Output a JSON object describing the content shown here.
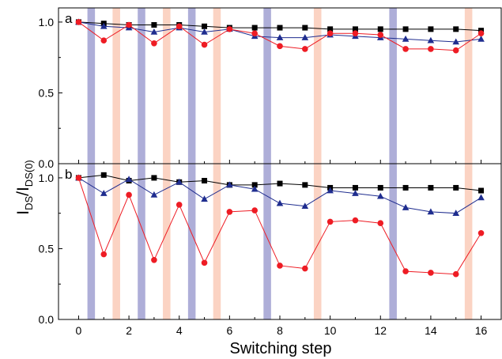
{
  "figure": {
    "ylabel_main": "I",
    "ylabel_sub1": "DS",
    "ylabel_slash": "/I",
    "ylabel_sub2": "DS(0)",
    "xlabel": "Switching step"
  },
  "colors": {
    "band_blue": "#aeaed8",
    "band_pink": "#fbd3c3",
    "series_black": "#000000",
    "series_blue": "#1f2d8f",
    "series_red": "#ee1c24"
  },
  "chart_data": [
    {
      "type": "line",
      "panel_label": "a",
      "x": [
        0,
        1,
        2,
        3,
        4,
        5,
        6,
        7,
        8,
        9,
        10,
        11,
        12,
        13,
        14,
        15,
        16
      ],
      "xlim": [
        -0.8,
        16.8
      ],
      "ylim": [
        0.0,
        1.1
      ],
      "xticks": [
        0,
        2,
        4,
        6,
        8,
        10,
        12,
        14,
        16
      ],
      "yticks": [
        0.0,
        0.5,
        1.0
      ],
      "ytick_labels": [
        "0.0",
        "0.5",
        "1.0"
      ],
      "grid": false,
      "legend": "none",
      "highlight_bands_blue": [
        [
          0.35,
          0.65
        ],
        [
          2.35,
          2.65
        ],
        [
          4.35,
          4.65
        ],
        [
          7.35,
          7.65
        ],
        [
          12.35,
          12.65
        ]
      ],
      "highlight_bands_pink": [
        [
          1.35,
          1.65
        ],
        [
          3.35,
          3.65
        ],
        [
          5.35,
          5.65
        ],
        [
          9.35,
          9.65
        ],
        [
          15.35,
          15.65
        ]
      ],
      "series": [
        {
          "marker": "square",
          "color": "#000000",
          "values": [
            1.0,
            0.99,
            0.98,
            0.98,
            0.98,
            0.97,
            0.96,
            0.96,
            0.96,
            0.96,
            0.95,
            0.95,
            0.95,
            0.95,
            0.95,
            0.95,
            0.94
          ]
        },
        {
          "marker": "triangle",
          "color": "#1f2d8f",
          "values": [
            1.0,
            0.97,
            0.96,
            0.93,
            0.96,
            0.93,
            0.95,
            0.9,
            0.89,
            0.89,
            0.91,
            0.9,
            0.89,
            0.88,
            0.87,
            0.86,
            0.88
          ]
        },
        {
          "marker": "circle",
          "color": "#ee1c24",
          "values": [
            1.0,
            0.87,
            0.98,
            0.85,
            0.97,
            0.84,
            0.95,
            0.92,
            0.83,
            0.81,
            0.92,
            0.92,
            0.91,
            0.81,
            0.81,
            0.8,
            0.92
          ]
        }
      ]
    },
    {
      "type": "line",
      "panel_label": "b",
      "x": [
        0,
        1,
        2,
        3,
        4,
        5,
        6,
        7,
        8,
        9,
        10,
        11,
        12,
        13,
        14,
        15,
        16
      ],
      "xlim": [
        -0.8,
        16.8
      ],
      "ylim": [
        0.0,
        1.1
      ],
      "xticks": [
        0,
        2,
        4,
        6,
        8,
        10,
        12,
        14,
        16
      ],
      "xtick_labels": [
        "0",
        "2",
        "4",
        "6",
        "8",
        "10",
        "12",
        "14",
        "16"
      ],
      "yticks": [
        0.0,
        0.5,
        1.0
      ],
      "ytick_labels": [
        "0.0",
        "0.5",
        "1.0"
      ],
      "grid": false,
      "legend": "none",
      "highlight_bands_blue": [
        [
          0.35,
          0.65
        ],
        [
          2.35,
          2.65
        ],
        [
          4.35,
          4.65
        ],
        [
          7.35,
          7.65
        ],
        [
          12.35,
          12.65
        ]
      ],
      "highlight_bands_pink": [
        [
          1.35,
          1.65
        ],
        [
          3.35,
          3.65
        ],
        [
          5.35,
          5.65
        ],
        [
          9.35,
          9.65
        ],
        [
          15.35,
          15.65
        ]
      ],
      "series": [
        {
          "marker": "square",
          "color": "#000000",
          "values": [
            1.0,
            1.02,
            0.98,
            1.0,
            0.97,
            0.98,
            0.95,
            0.95,
            0.96,
            0.95,
            0.93,
            0.93,
            0.93,
            0.93,
            0.93,
            0.93,
            0.91
          ]
        },
        {
          "marker": "triangle",
          "color": "#1f2d8f",
          "values": [
            1.0,
            0.89,
            0.99,
            0.88,
            0.97,
            0.85,
            0.95,
            0.92,
            0.82,
            0.8,
            0.91,
            0.89,
            0.87,
            0.79,
            0.76,
            0.75,
            0.86
          ]
        },
        {
          "marker": "circle",
          "color": "#ee1c24",
          "values": [
            1.0,
            0.46,
            0.88,
            0.42,
            0.81,
            0.4,
            0.76,
            0.77,
            0.38,
            0.36,
            0.69,
            0.7,
            0.68,
            0.34,
            0.33,
            0.32,
            0.61
          ]
        }
      ]
    }
  ]
}
